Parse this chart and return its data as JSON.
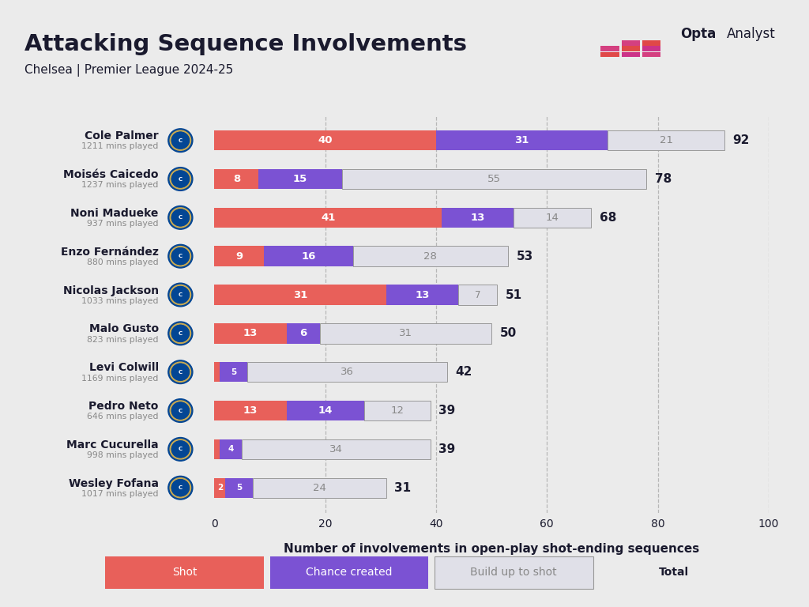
{
  "title": "Attacking Sequence Involvements",
  "subtitle": "Chelsea | Premier League 2024-25",
  "xlabel": "Number of involvements in open-play shot-ending sequences",
  "background_color": "#ebebeb",
  "players": [
    {
      "name": "Cole Palmer",
      "mins": "1211 mins played",
      "shot": 40,
      "chance": 31,
      "buildup": 21,
      "total": 92
    },
    {
      "name": "Moisés Caicedo",
      "mins": "1237 mins played",
      "shot": 8,
      "chance": 15,
      "buildup": 55,
      "total": 78
    },
    {
      "name": "Noni Madueke",
      "mins": "937 mins played",
      "shot": 41,
      "chance": 13,
      "buildup": 14,
      "total": 68
    },
    {
      "name": "Enzo Fernández",
      "mins": "880 mins played",
      "shot": 9,
      "chance": 16,
      "buildup": 28,
      "total": 53
    },
    {
      "name": "Nicolas Jackson",
      "mins": "1033 mins played",
      "shot": 31,
      "chance": 13,
      "buildup": 7,
      "total": 51
    },
    {
      "name": "Malo Gusto",
      "mins": "823 mins played",
      "shot": 13,
      "chance": 6,
      "buildup": 31,
      "total": 50
    },
    {
      "name": "Levi Colwill",
      "mins": "1169 mins played",
      "shot": 1,
      "chance": 5,
      "buildup": 36,
      "total": 42
    },
    {
      "name": "Pedro Neto",
      "mins": "646 mins played",
      "shot": 13,
      "chance": 14,
      "buildup": 12,
      "total": 39
    },
    {
      "name": "Marc Cucurella",
      "mins": "998 mins played",
      "shot": 1,
      "chance": 4,
      "buildup": 34,
      "total": 39
    },
    {
      "name": "Wesley Fofana",
      "mins": "1017 mins played",
      "shot": 2,
      "chance": 5,
      "buildup": 24,
      "total": 31
    }
  ],
  "color_shot": "#e8605a",
  "color_chance": "#7b52d3",
  "color_buildup": "#e0e0e8",
  "color_buildup_border": "#999999",
  "color_text_dark": "#1a1a2e",
  "color_text_white": "#ffffff",
  "color_text_gray": "#888888",
  "xlim": [
    0,
    100
  ],
  "bar_height": 0.52
}
